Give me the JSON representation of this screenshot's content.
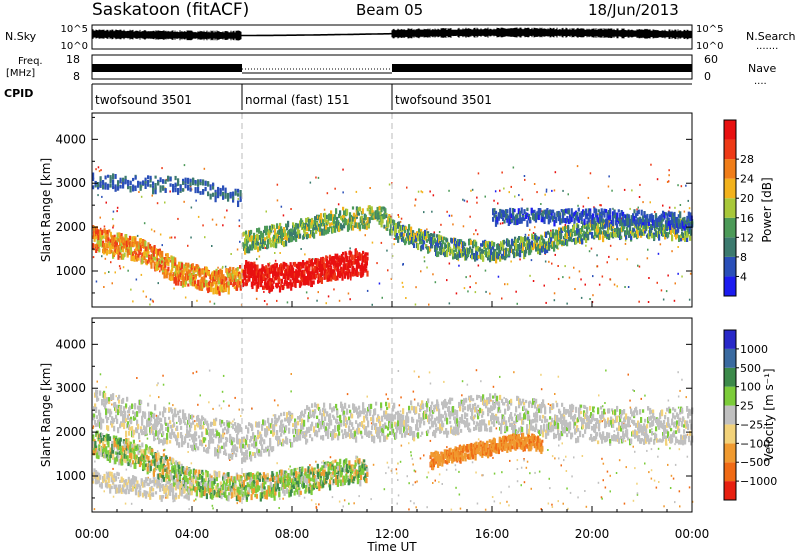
{
  "header": {
    "station": "Saskatoon (fitACF)",
    "beam": "Beam 05",
    "date": "18/Jun/2013"
  },
  "panels": {
    "nsky": {
      "left_label": "N.Sky",
      "left_ticks": [
        "10^5",
        "10^0"
      ],
      "right_ticks": [
        "10^5",
        "10^0"
      ],
      "right_label": "N.Search",
      "right_legend": "......."
    },
    "freq": {
      "left_label_line1": "Freq.",
      "left_label_line2": "[MHz]",
      "left_ticks": [
        "18",
        "8"
      ],
      "right_ticks": [
        "60",
        "0"
      ],
      "right_label": "Nave",
      "right_legend": "...."
    },
    "cpid": {
      "label": "CPID",
      "segments": [
        {
          "start": 0,
          "end": 6,
          "text": "twofsound 3501"
        },
        {
          "start": 6,
          "end": 12,
          "text": "normal (fast) 151"
        },
        {
          "start": 12,
          "end": 24,
          "text": "twofsound 3501"
        }
      ]
    }
  },
  "chart_data": [
    {
      "type": "heatmap",
      "name": "power",
      "ylabel": "Slant Range [km]",
      "xlabel": "",
      "ylim": [
        180,
        4600
      ],
      "xlim": [
        0,
        24
      ],
      "yticks": [
        1000,
        2000,
        3000,
        4000
      ],
      "colorbar": {
        "label": "Power [dB]",
        "ticks": [
          "4",
          "8",
          "12",
          "16",
          "20",
          "24",
          "28"
        ],
        "colors": [
          "#1c1cf0",
          "#2a4fb8",
          "#3c7a6e",
          "#4c9a58",
          "#a8c83a",
          "#f2b21c",
          "#f07d18",
          "#ee3a16",
          "#e81010"
        ]
      }
    },
    {
      "type": "heatmap",
      "name": "velocity",
      "ylabel": "Slant Range [km]",
      "xlabel": "Time UT",
      "ylim": [
        180,
        4600
      ],
      "xlim": [
        0,
        24
      ],
      "yticks": [
        1000,
        2000,
        3000,
        4000
      ],
      "xticks": [
        "00:00",
        "04:00",
        "08:00",
        "12:00",
        "16:00",
        "20:00",
        "00:00"
      ],
      "colorbar": {
        "label": "Velocity [m s⁻¹]",
        "ticks": [
          "1000",
          "500",
          "100",
          "25",
          "−25",
          "−100",
          "−500",
          "−1000"
        ],
        "colors": [
          "#2828c8",
          "#3a6aa0",
          "#3c8a4a",
          "#7ccc3a",
          "#c0c0c0",
          "#f2d27a",
          "#f09a30",
          "#f06a14",
          "#e82010"
        ]
      }
    }
  ]
}
